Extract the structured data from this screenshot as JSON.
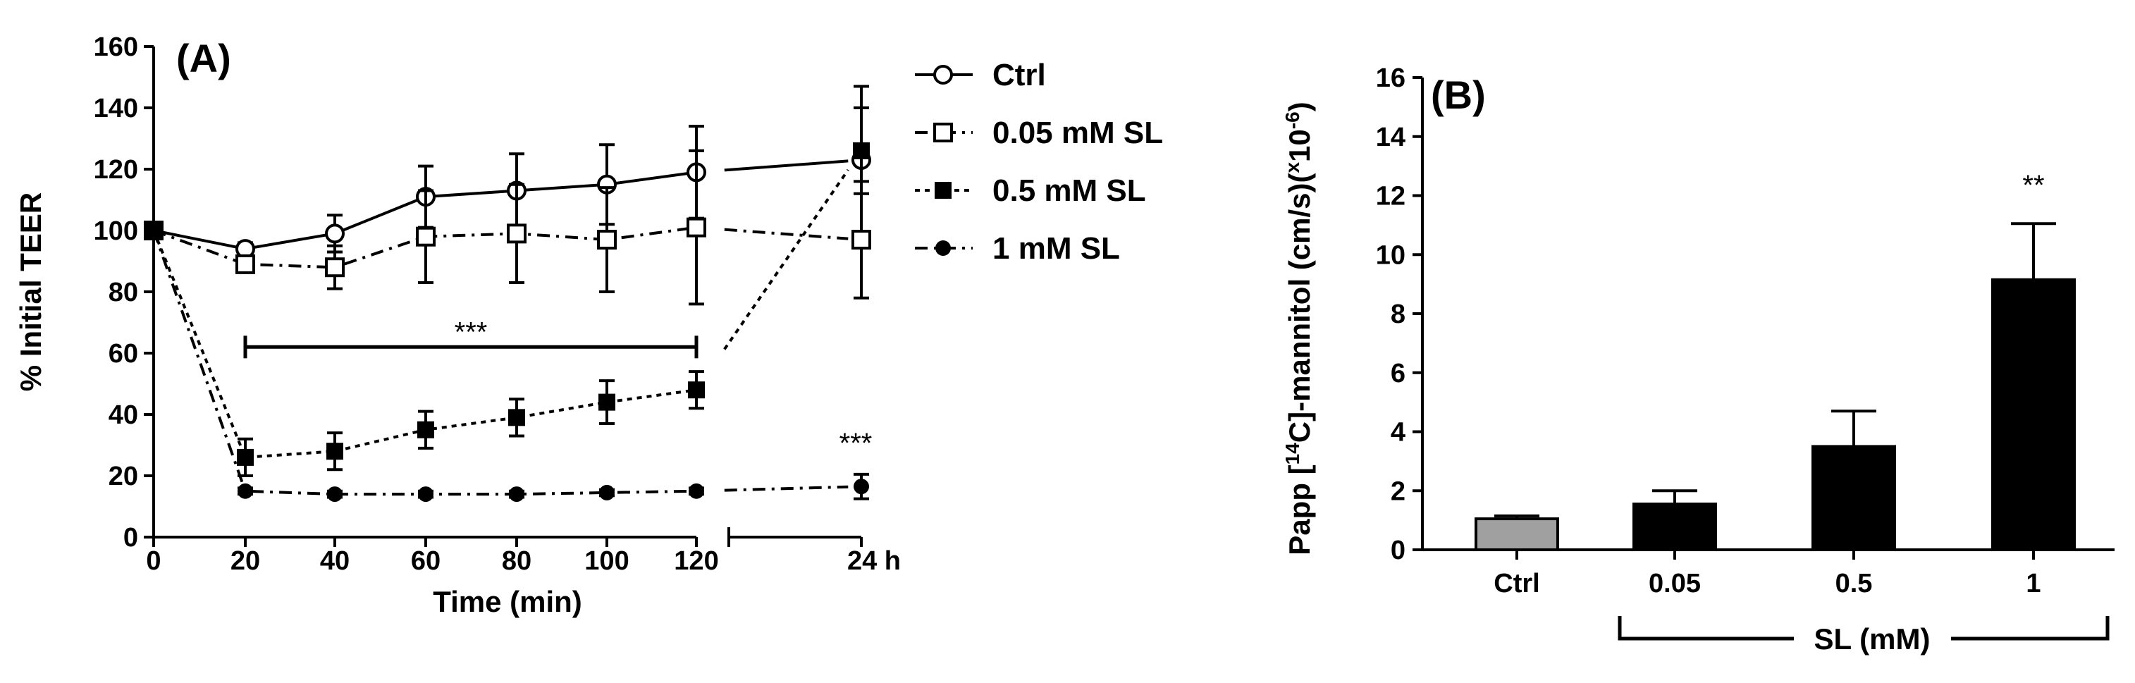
{
  "chart_data": [
    {
      "panel_label": "(A)",
      "type": "line",
      "xlabel": "Time (min)",
      "ylabel": "% Initial TEER",
      "ylim": [
        0,
        160
      ],
      "y_ticks": [
        "0",
        "20",
        "40",
        "60",
        "80",
        "100",
        "120",
        "140",
        "160"
      ],
      "x": [
        0,
        20,
        40,
        60,
        80,
        100,
        120,
        "24 h"
      ],
      "x_tick_labels": [
        "0",
        "20",
        "40",
        "60",
        "80",
        "100",
        "120",
        "24 h"
      ],
      "x_axis_break_after": 120,
      "legend_placement": "right",
      "series": [
        {
          "name": "Ctrl",
          "marker": "open-circle",
          "line": "solid",
          "values": [
            100,
            94,
            99,
            111,
            113,
            115,
            119,
            123
          ],
          "errors": [
            0,
            2,
            6,
            10,
            12,
            13,
            15,
            24
          ]
        },
        {
          "name": "0.05 mM SL",
          "marker": "open-square",
          "line": "dash-dot",
          "values": [
            100,
            89,
            88,
            98,
            99,
            97,
            101,
            97
          ],
          "errors": [
            0,
            2,
            7,
            15,
            16,
            17,
            25,
            19
          ]
        },
        {
          "name": "0.5 mM SL",
          "marker": "filled-square",
          "line": "dotted",
          "values": [
            100,
            26,
            28,
            35,
            39,
            44,
            48,
            126
          ],
          "errors": [
            0,
            6,
            6,
            6,
            6,
            7,
            6,
            14
          ]
        },
        {
          "name": "1 mM SL",
          "marker": "filled-circle",
          "line": "dash-dot",
          "values": [
            100,
            15,
            14,
            14,
            14,
            14.5,
            15,
            16.5
          ],
          "errors": [
            0,
            1,
            1,
            1,
            1,
            1,
            1,
            4
          ]
        }
      ],
      "annotations": [
        {
          "text": "***",
          "target": "significance bar spanning 20 to 120 min",
          "bar_y": 62
        },
        {
          "text": "***",
          "target": "1 mM SL at 24 h"
        }
      ]
    },
    {
      "panel_label": "(B)",
      "type": "bar",
      "ylabel_parts": [
        "Papp [",
        "14",
        "C]-mannitol (cm/s)(",
        "x",
        "10",
        "-6",
        ")"
      ],
      "xlabel": "SL (mM)",
      "ylim": [
        0,
        16
      ],
      "y_ticks": [
        "0",
        "2",
        "4",
        "6",
        "8",
        "10",
        "12",
        "14",
        "16"
      ],
      "categories": [
        "Ctrl",
        "0.05",
        "0.5",
        "1"
      ],
      "values": [
        1.05,
        1.55,
        3.5,
        9.15
      ],
      "errors": [
        0.1,
        0.45,
        1.2,
        1.9
      ],
      "colors": [
        "#a0a0a0",
        "#000000",
        "#000000",
        "#000000"
      ],
      "annotations": [
        {
          "text": "**",
          "category": "1"
        }
      ]
    }
  ]
}
